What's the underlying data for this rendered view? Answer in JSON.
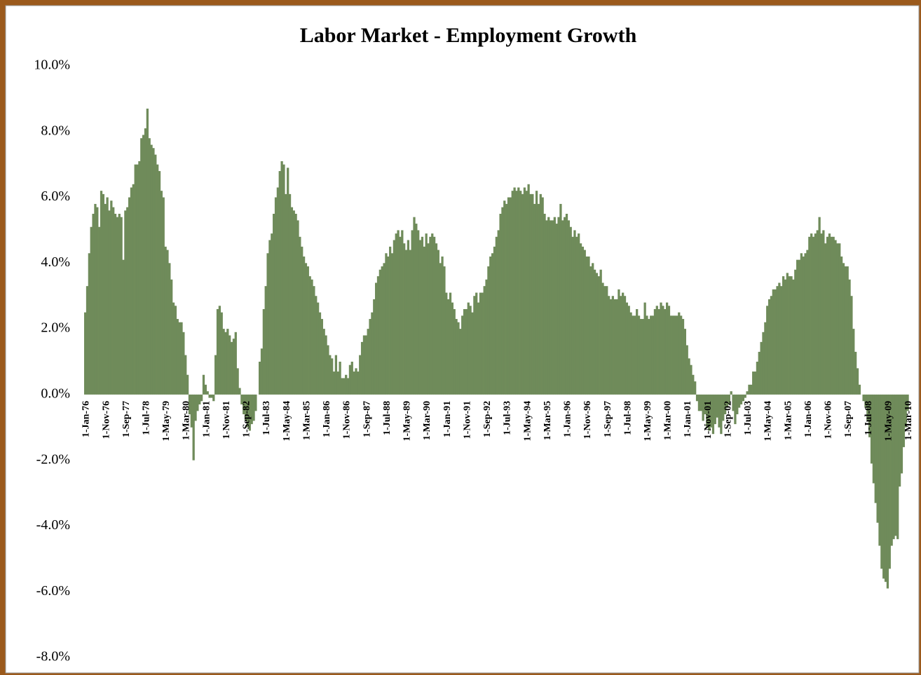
{
  "chart_data": {
    "type": "bar",
    "title": "Labor Market - Employment Growth",
    "color": "#6f8b5a",
    "ylim": [
      -8,
      10
    ],
    "yticks": [
      {
        "value": -8,
        "label": "-8.0%"
      },
      {
        "value": -6,
        "label": "-6.0%"
      },
      {
        "value": -4,
        "label": "-4.0%"
      },
      {
        "value": -2,
        "label": "-2.0%"
      },
      {
        "value": 0,
        "label": "0.0%"
      },
      {
        "value": 2,
        "label": "2.0%"
      },
      {
        "value": 4,
        "label": "4.0%"
      },
      {
        "value": 6,
        "label": "6.0%"
      },
      {
        "value": 8,
        "label": "8.0%"
      },
      {
        "value": 10,
        "label": "10.0%"
      }
    ],
    "categories": [
      "1-Jan-76",
      null,
      null,
      null,
      null,
      null,
      null,
      null,
      null,
      null,
      "1-Nov-76",
      null,
      null,
      null,
      null,
      null,
      null,
      null,
      null,
      null,
      "1-Sep-77",
      null,
      null,
      null,
      null,
      null,
      null,
      null,
      null,
      null,
      "1-Jul-78",
      null,
      null,
      null,
      null,
      null,
      null,
      null,
      null,
      null,
      "1-May-79",
      null,
      null,
      null,
      null,
      null,
      null,
      null,
      null,
      null,
      "1-Mar-80",
      null,
      null,
      null,
      null,
      null,
      null,
      null,
      null,
      null,
      "1-Jan-81",
      null,
      null,
      null,
      null,
      null,
      null,
      null,
      null,
      null,
      "1-Nov-81",
      null,
      null,
      null,
      null,
      null,
      null,
      null,
      null,
      null,
      "1-Sep-82",
      null,
      null,
      null,
      null,
      null,
      null,
      null,
      null,
      null,
      "1-Jul-83",
      null,
      null,
      null,
      null,
      null,
      null,
      null,
      null,
      null,
      "1-May-84",
      null,
      null,
      null,
      null,
      null,
      null,
      null,
      null,
      null,
      "1-Mar-85",
      null,
      null,
      null,
      null,
      null,
      null,
      null,
      null,
      null,
      "1-Jan-86",
      null,
      null,
      null,
      null,
      null,
      null,
      null,
      null,
      null,
      "1-Nov-86",
      null,
      null,
      null,
      null,
      null,
      null,
      null,
      null,
      null,
      "1-Sep-87",
      null,
      null,
      null,
      null,
      null,
      null,
      null,
      null,
      null,
      "1-Jul-88",
      null,
      null,
      null,
      null,
      null,
      null,
      null,
      null,
      null,
      "1-May-89",
      null,
      null,
      null,
      null,
      null,
      null,
      null,
      null,
      null,
      "1-Mar-90",
      null,
      null,
      null,
      null,
      null,
      null,
      null,
      null,
      null,
      "1-Jan-91",
      null,
      null,
      null,
      null,
      null,
      null,
      null,
      null,
      null,
      "1-Nov-91",
      null,
      null,
      null,
      null,
      null,
      null,
      null,
      null,
      null,
      "1-Sep-92",
      null,
      null,
      null,
      null,
      null,
      null,
      null,
      null,
      null,
      "1-Jul-93",
      null,
      null,
      null,
      null,
      null,
      null,
      null,
      null,
      null,
      "1-May-94",
      null,
      null,
      null,
      null,
      null,
      null,
      null,
      null,
      null,
      "1-Mar-95",
      null,
      null,
      null,
      null,
      null,
      null,
      null,
      null,
      null,
      "1-Jan-96",
      null,
      null,
      null,
      null,
      null,
      null,
      null,
      null,
      null,
      "1-Nov-96",
      null,
      null,
      null,
      null,
      null,
      null,
      null,
      null,
      null,
      "1-Sep-97",
      null,
      null,
      null,
      null,
      null,
      null,
      null,
      null,
      null,
      "1-Jul-98",
      null,
      null,
      null,
      null,
      null,
      null,
      null,
      null,
      null,
      "1-May-99",
      null,
      null,
      null,
      null,
      null,
      null,
      null,
      null,
      null,
      "1-Mar-00",
      null,
      null,
      null,
      null,
      null,
      null,
      null,
      null,
      null,
      "1-Jan-01",
      null,
      null,
      null,
      null,
      null,
      null,
      null,
      null,
      null,
      "1-Nov-01",
      null,
      null,
      null,
      null,
      null,
      null,
      null,
      null,
      null,
      "1-Sep-02",
      null,
      null,
      null,
      null,
      null,
      null,
      null,
      null,
      null,
      "1-Jul-03",
      null,
      null,
      null,
      null,
      null,
      null,
      null,
      null,
      null,
      "1-May-04",
      null,
      null,
      null,
      null,
      null,
      null,
      null,
      null,
      null,
      "1-Mar-05",
      null,
      null,
      null,
      null,
      null,
      null,
      null,
      null,
      null,
      "1-Jan-06",
      null,
      null,
      null,
      null,
      null,
      null,
      null,
      null,
      null,
      "1-Nov-06",
      null,
      null,
      null,
      null,
      null,
      null,
      null,
      null,
      null,
      "1-Sep-07",
      null,
      null,
      null,
      null,
      null,
      null,
      null,
      null,
      null,
      "1-Jul-08",
      null,
      null,
      null,
      null,
      null,
      null,
      null,
      null,
      null,
      "1-May-09",
      null,
      null,
      null,
      null,
      null,
      null,
      null,
      null,
      null,
      "1-Mar-10"
    ],
    "values": [
      2.5,
      3.3,
      4.3,
      5.1,
      5.5,
      5.8,
      5.7,
      5.1,
      6.2,
      6.1,
      5.8,
      6.0,
      5.6,
      5.9,
      5.7,
      5.5,
      5.4,
      5.5,
      5.4,
      4.1,
      5.6,
      5.7,
      6.0,
      6.3,
      6.4,
      7.0,
      7.0,
      7.1,
      7.8,
      7.9,
      8.1,
      8.7,
      7.8,
      7.6,
      7.5,
      7.3,
      7.0,
      6.8,
      6.2,
      6.0,
      4.5,
      4.4,
      4.0,
      3.5,
      2.8,
      2.7,
      2.3,
      2.2,
      2.2,
      1.9,
      1.2,
      0.6,
      -0.6,
      -1.0,
      -2.0,
      -0.8,
      -0.5,
      -0.3,
      -0.2,
      0.6,
      0.3,
      0.1,
      -0.1,
      -0.1,
      -0.2,
      1.2,
      2.6,
      2.7,
      2.5,
      2.0,
      1.9,
      2.0,
      1.8,
      1.6,
      1.7,
      1.9,
      0.8,
      0.2,
      -0.3,
      -0.6,
      -0.8,
      -1.0,
      -1.1,
      -0.9,
      -0.8,
      -0.5,
      0.0,
      1.0,
      1.4,
      2.6,
      3.3,
      4.3,
      4.7,
      4.9,
      5.5,
      6.0,
      6.3,
      6.8,
      7.1,
      7.0,
      6.1,
      6.9,
      6.1,
      5.7,
      5.6,
      5.5,
      5.3,
      4.8,
      4.5,
      4.2,
      4.0,
      3.9,
      3.6,
      3.5,
      3.3,
      3.0,
      2.8,
      2.5,
      2.3,
      2.0,
      1.8,
      1.5,
      1.2,
      1.1,
      0.7,
      1.2,
      0.7,
      1.0,
      0.5,
      0.5,
      0.6,
      0.5,
      0.9,
      1.0,
      0.7,
      0.8,
      0.7,
      1.2,
      1.6,
      1.8,
      1.8,
      2.0,
      2.3,
      2.5,
      2.9,
      3.4,
      3.6,
      3.8,
      3.9,
      4.0,
      4.3,
      4.2,
      4.5,
      4.3,
      4.7,
      4.9,
      5.0,
      4.8,
      5.0,
      4.6,
      4.4,
      4.7,
      4.4,
      5.0,
      5.4,
      5.2,
      5.0,
      4.7,
      4.8,
      4.5,
      4.9,
      4.6,
      4.8,
      4.9,
      4.8,
      4.6,
      4.4,
      4.0,
      4.2,
      3.9,
      3.1,
      2.9,
      3.1,
      2.8,
      2.6,
      2.3,
      2.2,
      2.0,
      2.4,
      2.6,
      2.6,
      2.8,
      2.7,
      2.5,
      3.0,
      3.1,
      2.8,
      3.1,
      3.1,
      3.3,
      3.5,
      3.9,
      4.2,
      4.3,
      4.5,
      4.8,
      5.0,
      5.5,
      5.7,
      5.9,
      5.8,
      6.0,
      6.0,
      6.2,
      6.3,
      6.2,
      6.3,
      6.2,
      6.1,
      6.3,
      6.2,
      6.4,
      6.1,
      6.1,
      5.8,
      6.2,
      5.8,
      6.1,
      6.0,
      5.5,
      5.3,
      5.4,
      5.3,
      5.3,
      5.4,
      5.2,
      5.4,
      5.8,
      5.3,
      5.4,
      5.5,
      5.3,
      5.1,
      4.8,
      5.0,
      4.8,
      4.9,
      4.6,
      4.5,
      4.4,
      4.2,
      4.2,
      3.9,
      4.0,
      3.8,
      3.7,
      3.6,
      3.8,
      3.4,
      3.3,
      3.3,
      3.0,
      2.9,
      3.0,
      2.9,
      2.9,
      3.2,
      3.0,
      3.1,
      3.0,
      2.8,
      2.7,
      2.5,
      2.4,
      2.4,
      2.6,
      2.4,
      2.3,
      2.3,
      2.8,
      2.4,
      2.3,
      2.4,
      2.4,
      2.6,
      2.7,
      2.6,
      2.8,
      2.7,
      2.6,
      2.8,
      2.7,
      2.4,
      2.4,
      2.4,
      2.4,
      2.5,
      2.4,
      2.3,
      2.0,
      1.5,
      1.1,
      0.9,
      0.6,
      0.4,
      -0.2,
      -0.5,
      -0.5,
      -0.8,
      -0.6,
      -1.0,
      -1.1,
      -1.0,
      -1.2,
      -0.9,
      -0.7,
      -1.0,
      -1.2,
      -0.8,
      -0.6,
      -0.4,
      -0.3,
      0.1,
      -0.5,
      -0.9,
      -0.6,
      -0.4,
      -0.3,
      -0.2,
      -0.1,
      0.1,
      0.3,
      0.3,
      0.7,
      0.7,
      1.0,
      1.3,
      1.6,
      1.9,
      2.2,
      2.7,
      2.9,
      3.0,
      3.2,
      3.2,
      3.3,
      3.4,
      3.3,
      3.6,
      3.5,
      3.7,
      3.6,
      3.6,
      3.5,
      3.8,
      4.1,
      4.1,
      4.3,
      4.2,
      4.3,
      4.4,
      4.8,
      4.9,
      4.8,
      4.9,
      5.0,
      5.4,
      4.9,
      5.0,
      4.6,
      4.8,
      4.9,
      4.8,
      4.8,
      4.7,
      4.6,
      4.6,
      4.2,
      4.0,
      3.9,
      3.9,
      3.5,
      3.0,
      2.0,
      1.3,
      0.8,
      0.3,
      0.0,
      -0.2,
      -0.4,
      -0.8,
      -1.3,
      -2.1,
      -2.7,
      -3.3,
      -3.9,
      -4.6,
      -5.3,
      -5.6,
      -5.7,
      -5.9,
      -5.3,
      -4.6,
      -4.4,
      -4.3,
      -4.4,
      -2.8,
      -2.4,
      -1.6,
      -1.0,
      -0.5
    ]
  }
}
